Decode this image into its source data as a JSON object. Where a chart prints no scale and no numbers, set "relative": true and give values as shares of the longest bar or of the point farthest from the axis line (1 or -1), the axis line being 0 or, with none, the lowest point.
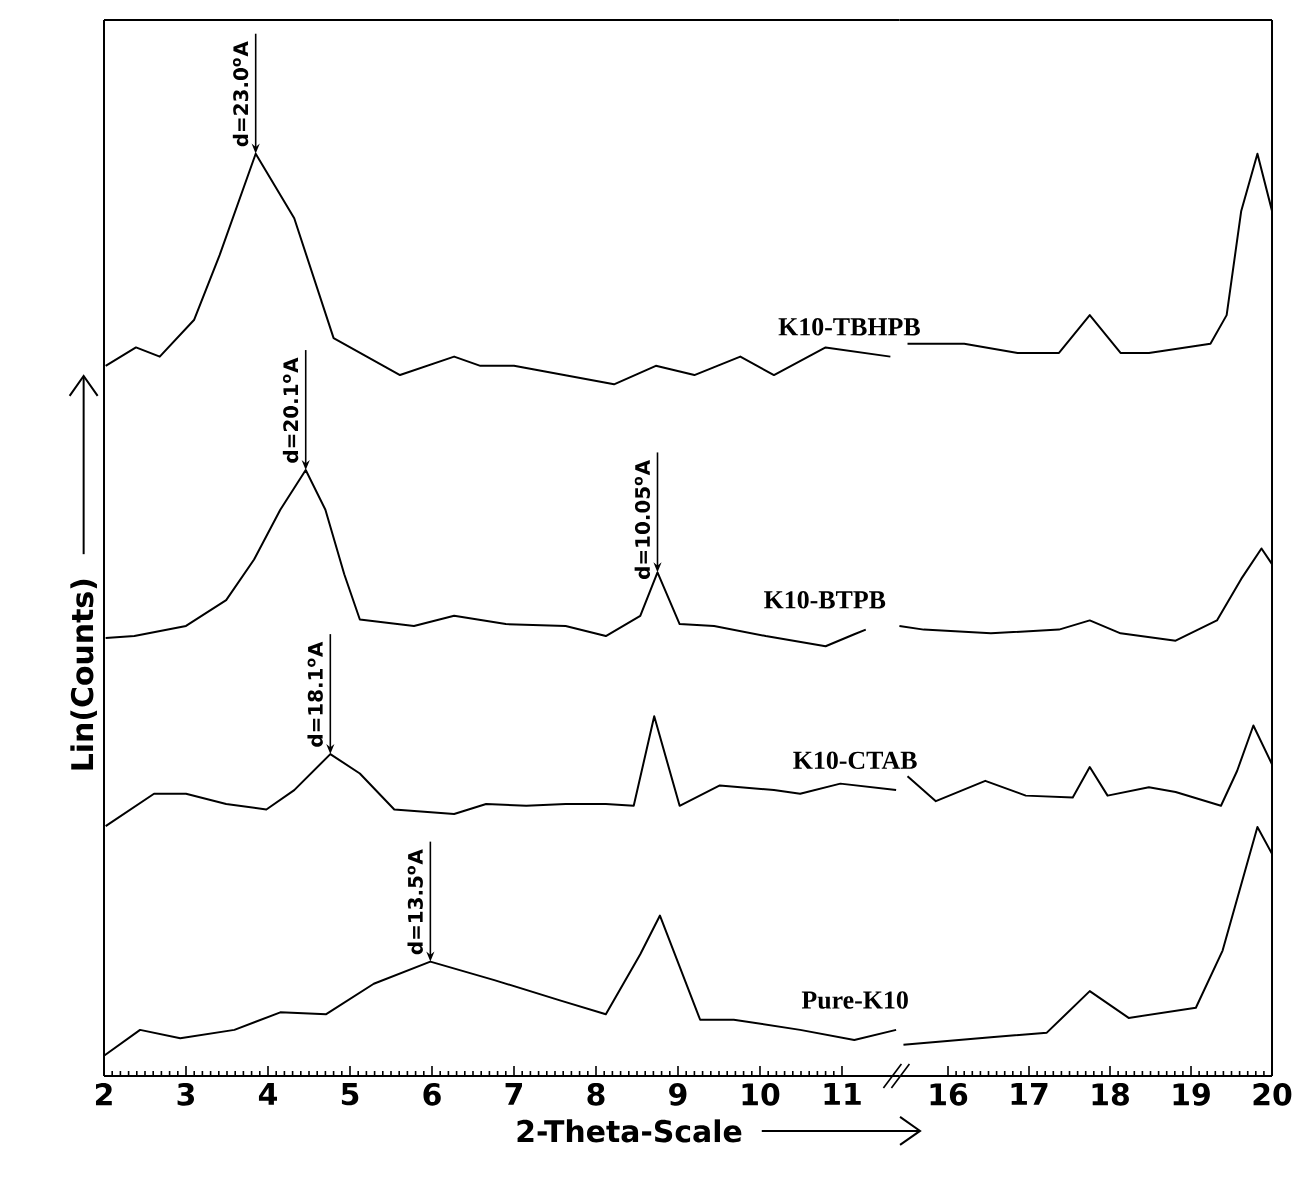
{
  "chart_data": [
    {
      "type": "line",
      "relative": true,
      "xlabel": "2-Theta-Scale",
      "ylabel": "Lin(Counts)",
      "xlim": [
        2,
        11.7
      ],
      "xticks": [
        2,
        3,
        4,
        5,
        6,
        7,
        8,
        9,
        10,
        11
      ],
      "tick_labels": "x",
      "annotations": [
        {
          "text": "d=23.0$^{o}$A",
          "x": 3.85,
          "y": 1.0
        },
        {
          "text": "d=20.1$^{o}$A",
          "x": 4.46,
          "y": 0.657
        },
        {
          "text": "d=10.05$^{o}$A",
          "x": 8.75,
          "y": 0.546
        },
        {
          "text": "d=18.1$^{o}$A",
          "x": 4.76,
          "y": 0.349
        },
        {
          "text": "d=13.5$^{o}$A",
          "x": 5.98,
          "y": 0.124
        }
      ],
      "series": [
        {
          "name": "K10-TBHPB",
          "color": "#000000",
          "x": [
            2.02,
            2.39,
            2.68,
            3.1,
            3.41,
            3.85,
            4.32,
            4.8,
            5.61,
            6.27,
            6.59,
            7.0,
            8.22,
            8.73,
            9.2,
            9.76,
            10.17,
            10.8,
            11.59
          ],
          "values": [
            0.77,
            0.79,
            0.78,
            0.82,
            0.89,
            1.0,
            0.93,
            0.8,
            0.76,
            0.78,
            0.77,
            0.77,
            0.75,
            0.77,
            0.76,
            0.78,
            0.76,
            0.79,
            0.78
          ]
        },
        {
          "name": "K10-BTPB",
          "color": "#000000",
          "x": [
            2.02,
            2.37,
            3.0,
            3.49,
            3.83,
            4.15,
            4.46,
            4.7,
            4.93,
            5.12,
            5.78,
            6.27,
            6.9,
            7.63,
            8.12,
            8.54,
            8.75,
            9.02,
            9.44,
            10.07,
            10.8,
            11.15,
            11.29
          ],
          "values": [
            0.475,
            0.477,
            0.488,
            0.516,
            0.56,
            0.614,
            0.657,
            0.614,
            0.544,
            0.495,
            0.488,
            0.499,
            0.49,
            0.488,
            0.477,
            0.499,
            0.546,
            0.49,
            0.488,
            0.477,
            0.466,
            0.479,
            0.484
          ]
        },
        {
          "name": "K10-CTAB",
          "color": "#000000",
          "x": [
            2.02,
            2.61,
            3.0,
            3.49,
            3.98,
            4.32,
            4.76,
            5.12,
            5.54,
            6.27,
            6.66,
            7.15,
            7.63,
            8.12,
            8.46,
            8.71,
            9.02,
            9.51,
            10.17,
            10.49,
            10.98,
            11.66
          ],
          "values": [
            0.271,
            0.306,
            0.306,
            0.295,
            0.289,
            0.31,
            0.349,
            0.328,
            0.289,
            0.284,
            0.295,
            0.293,
            0.295,
            0.295,
            0.293,
            0.39,
            0.293,
            0.315,
            0.31,
            0.306,
            0.317,
            0.31
          ]
        },
        {
          "name": "Pure-K10",
          "color": "#000000",
          "x": [
            2.0,
            2.44,
            2.93,
            3.59,
            4.15,
            4.71,
            5.29,
            5.98,
            6.76,
            7.56,
            8.12,
            8.54,
            8.78,
            9.27,
            9.68,
            10.49,
            11.15,
            11.66
          ],
          "values": [
            0.022,
            0.05,
            0.041,
            0.05,
            0.069,
            0.067,
            0.1,
            0.124,
            0.104,
            0.082,
            0.067,
            0.132,
            0.174,
            0.061,
            0.061,
            0.05,
            0.039,
            0.05
          ]
        }
      ]
    },
    {
      "type": "line",
      "relative": true,
      "xlim": [
        15.4,
        20
      ],
      "xticks": [
        16,
        17,
        18,
        19,
        20
      ],
      "tick_labels": "x",
      "series": [
        {
          "color": "#000000",
          "x": [
            15.5,
            16.2,
            16.86,
            17.37,
            17.75,
            18.13,
            18.48,
            19.24,
            19.44,
            19.62,
            19.82,
            20.0
          ],
          "values": [
            0.794,
            0.794,
            0.784,
            0.784,
            0.825,
            0.784,
            0.784,
            0.794,
            0.825,
            0.938,
            1.0,
            0.938
          ]
        },
        {
          "color": "#000000",
          "x": [
            15.4,
            15.7,
            16.53,
            17.37,
            17.75,
            18.13,
            18.81,
            19.32,
            19.62,
            19.87,
            20.0
          ],
          "values": [
            0.488,
            0.484,
            0.48,
            0.484,
            0.494,
            0.48,
            0.472,
            0.494,
            0.539,
            0.572,
            0.555
          ]
        },
        {
          "color": "#000000",
          "x": [
            15.5,
            15.85,
            16.46,
            16.96,
            17.54,
            17.75,
            17.97,
            18.48,
            18.81,
            19.37,
            19.57,
            19.77,
            20.0
          ],
          "values": [
            0.325,
            0.298,
            0.32,
            0.304,
            0.302,
            0.335,
            0.304,
            0.313,
            0.308,
            0.293,
            0.331,
            0.38,
            0.338
          ]
        },
        {
          "color": "#000000",
          "x": [
            15.45,
            16.53,
            17.22,
            17.75,
            18.23,
            19.06,
            19.39,
            19.82,
            20.0
          ],
          "values": [
            0.034,
            0.042,
            0.047,
            0.092,
            0.063,
            0.074,
            0.136,
            0.27,
            0.241
          ]
        }
      ]
    }
  ]
}
